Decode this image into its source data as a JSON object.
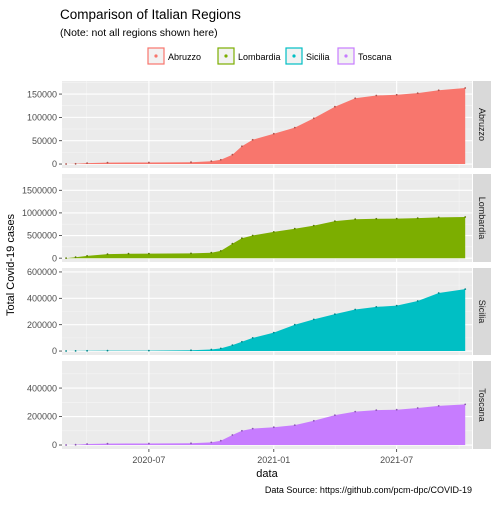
{
  "colors": {
    "panel_bg": "#EBEBEB",
    "grid_major": "#FFFFFF",
    "grid_minor": "#F5F5F5",
    "strip_bg": "#D9D9D9",
    "axis_text": "#4D4D4D",
    "tick": "#333333"
  },
  "chart_data": {
    "type": "area",
    "title": "Comparison of Italian Regions",
    "subtitle": "(Note: not all regions shown here)",
    "xlabel": "data",
    "ylabel": "Total Covid-19 cases",
    "caption": "Data Source: https://github.com/pcm-dpc/COVID-19",
    "x_ticks": [
      "2020-07",
      "2021-01",
      "2021-07"
    ],
    "xlim": [
      "2020-02-24",
      "2021-10-20"
    ],
    "legend_position": "top",
    "facet_layout": "rows, strip labels on right, free y scales",
    "grid": true,
    "series": [
      {
        "name": "Abruzzo",
        "color": "#F8766D",
        "ylim": [
          -8500,
          178000
        ],
        "y_ticks": [
          0,
          50000,
          100000,
          150000
        ],
        "y_tick_labels": [
          "0",
          "50000",
          "100000",
          "150000"
        ],
        "points": [
          [
            "2020-03-01",
            0
          ],
          [
            "2020-03-15",
            500
          ],
          [
            "2020-04-01",
            2000
          ],
          [
            "2020-05-01",
            3000
          ],
          [
            "2020-07-01",
            3300
          ],
          [
            "2020-09-01",
            4000
          ],
          [
            "2020-10-01",
            6000
          ],
          [
            "2020-10-15",
            9000
          ],
          [
            "2020-11-01",
            20000
          ],
          [
            "2020-11-15",
            38000
          ],
          [
            "2020-12-01",
            52000
          ],
          [
            "2021-01-01",
            65000
          ],
          [
            "2021-02-01",
            78000
          ],
          [
            "2021-03-01",
            98000
          ],
          [
            "2021-04-01",
            123000
          ],
          [
            "2021-05-01",
            141000
          ],
          [
            "2021-06-01",
            147000
          ],
          [
            "2021-07-01",
            148500
          ],
          [
            "2021-08-01",
            152000
          ],
          [
            "2021-09-01",
            158000
          ],
          [
            "2021-10-10",
            163000
          ]
        ]
      },
      {
        "name": "Lombardia",
        "color": "#7CAE00",
        "ylim": [
          -85000,
          1860000
        ],
        "y_ticks": [
          0,
          500000,
          1000000,
          1500000
        ],
        "y_tick_labels": [
          "0",
          "500000",
          "1000000",
          "1500000"
        ],
        "points": [
          [
            "2020-03-01",
            1000
          ],
          [
            "2020-03-15",
            20000
          ],
          [
            "2020-04-01",
            50000
          ],
          [
            "2020-05-01",
            90000
          ],
          [
            "2020-06-01",
            98000
          ],
          [
            "2020-07-01",
            100000
          ],
          [
            "2020-09-01",
            105000
          ],
          [
            "2020-10-01",
            120000
          ],
          [
            "2020-10-15",
            160000
          ],
          [
            "2020-11-01",
            320000
          ],
          [
            "2020-11-15",
            440000
          ],
          [
            "2020-12-01",
            500000
          ],
          [
            "2021-01-01",
            580000
          ],
          [
            "2021-02-01",
            650000
          ],
          [
            "2021-03-01",
            720000
          ],
          [
            "2021-04-01",
            820000
          ],
          [
            "2021-05-01",
            860000
          ],
          [
            "2021-06-01",
            870000
          ],
          [
            "2021-07-01",
            875000
          ],
          [
            "2021-08-01",
            885000
          ],
          [
            "2021-09-01",
            900000
          ],
          [
            "2021-10-10",
            910000
          ]
        ]
      },
      {
        "name": "Sicilia",
        "color": "#00BFC4",
        "ylim": [
          -30000,
          630000
        ],
        "y_ticks": [
          0,
          200000,
          400000,
          600000
        ],
        "y_tick_labels": [
          "0",
          "200000",
          "400000",
          "600000"
        ],
        "points": [
          [
            "2020-03-01",
            0
          ],
          [
            "2020-03-15",
            1000
          ],
          [
            "2020-04-01",
            2000
          ],
          [
            "2020-05-01",
            3300
          ],
          [
            "2020-07-01",
            3500
          ],
          [
            "2020-09-01",
            6000
          ],
          [
            "2020-10-01",
            12000
          ],
          [
            "2020-10-15",
            20000
          ],
          [
            "2020-11-01",
            45000
          ],
          [
            "2020-11-15",
            70000
          ],
          [
            "2020-12-01",
            100000
          ],
          [
            "2021-01-01",
            140000
          ],
          [
            "2021-02-01",
            200000
          ],
          [
            "2021-03-01",
            240000
          ],
          [
            "2021-04-01",
            280000
          ],
          [
            "2021-05-01",
            315000
          ],
          [
            "2021-06-01",
            335000
          ],
          [
            "2021-07-01",
            345000
          ],
          [
            "2021-08-01",
            380000
          ],
          [
            "2021-09-01",
            440000
          ],
          [
            "2021-10-10",
            470000
          ]
        ]
      },
      {
        "name": "Toscana",
        "color": "#C77CFF",
        "ylim": [
          -28000,
          590000
        ],
        "y_ticks": [
          0,
          200000,
          400000
        ],
        "y_tick_labels": [
          "0",
          "200000",
          "400000"
        ],
        "points": [
          [
            "2020-03-01",
            0
          ],
          [
            "2020-03-15",
            2000
          ],
          [
            "2020-04-01",
            7000
          ],
          [
            "2020-05-01",
            10000
          ],
          [
            "2020-07-01",
            10500
          ],
          [
            "2020-09-01",
            12000
          ],
          [
            "2020-10-01",
            18000
          ],
          [
            "2020-10-15",
            30000
          ],
          [
            "2020-11-01",
            70000
          ],
          [
            "2020-11-15",
            100000
          ],
          [
            "2020-12-01",
            115000
          ],
          [
            "2021-01-01",
            125000
          ],
          [
            "2021-02-01",
            140000
          ],
          [
            "2021-03-01",
            170000
          ],
          [
            "2021-04-01",
            210000
          ],
          [
            "2021-05-01",
            235000
          ],
          [
            "2021-06-01",
            245000
          ],
          [
            "2021-07-01",
            248000
          ],
          [
            "2021-08-01",
            260000
          ],
          [
            "2021-09-01",
            275000
          ],
          [
            "2021-10-10",
            285000
          ]
        ]
      }
    ]
  }
}
